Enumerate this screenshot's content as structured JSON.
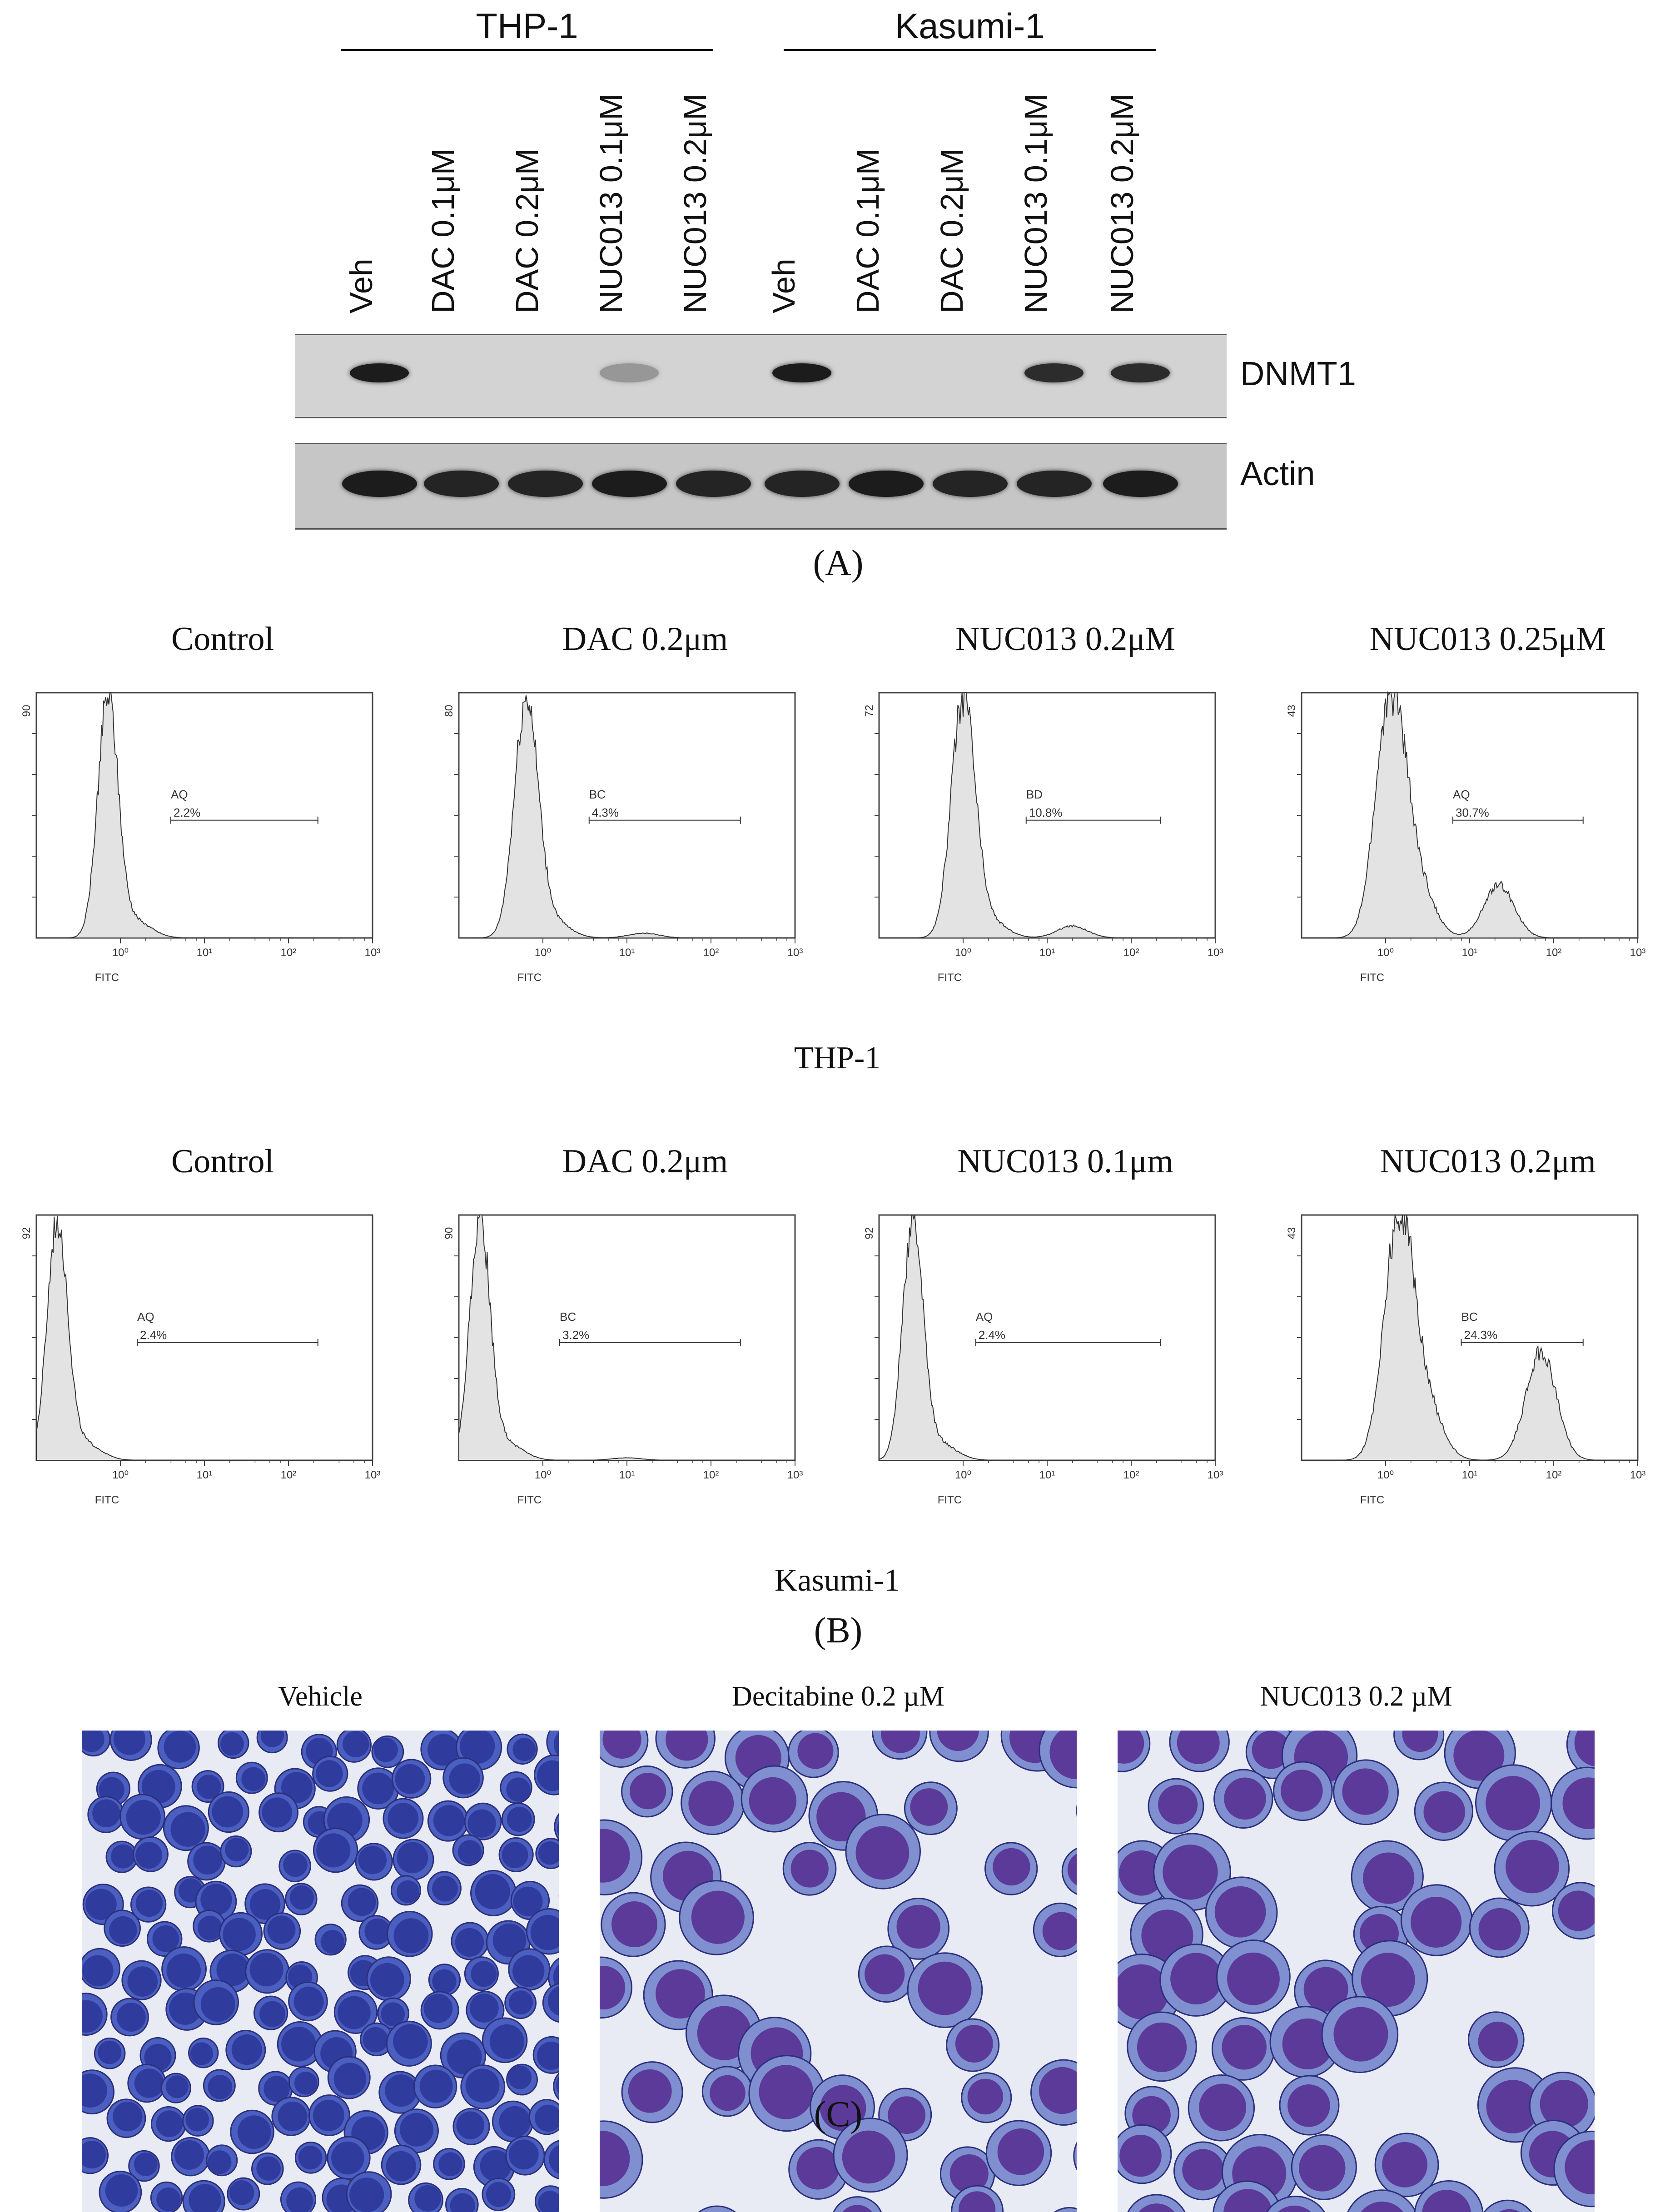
{
  "panel_a": {
    "group_labels": [
      "THP-1",
      "Kasumi-1"
    ],
    "lanes": [
      "Veh",
      "DAC 0.1μM",
      "DAC 0.2μM",
      "NUC013 0.1μM",
      "NUC013 0.2μM",
      "Veh",
      "DAC 0.1μM",
      "DAC 0.2μM",
      "NUC013 0.1μM",
      "NUC013 0.2μM"
    ],
    "blots": [
      {
        "name": "DNMT1",
        "intensities": [
          0.95,
          0,
          0,
          0.18,
          0,
          0.95,
          0,
          0,
          0.85,
          0.85
        ]
      },
      {
        "name": "Actin",
        "intensities": [
          0.95,
          0.9,
          0.9,
          0.95,
          0.9,
          0.9,
          0.95,
          0.9,
          0.9,
          0.95
        ]
      }
    ],
    "letter": "(A)"
  },
  "panel_b": {
    "letter": "(B)",
    "axis_label": "FITC",
    "tick_labels": [
      "10⁰",
      "10¹",
      "10²",
      "10³"
    ],
    "rows": [
      {
        "cell_line": "THP-1",
        "plots": [
          {
            "title": "Control",
            "ymax": "90",
            "gate": "AQ",
            "percent": "2.2%",
            "peak_log": -0.15,
            "peak_sd": 0.12,
            "tail": 0,
            "tail_center": 1.4
          },
          {
            "title": "DAC 0.2μm",
            "ymax": "80",
            "gate": "BC",
            "percent": "4.3%",
            "peak_log": -0.2,
            "peak_sd": 0.14,
            "tail": 0.02,
            "tail_center": 1.2
          },
          {
            "title": "NUC013 0.2μM",
            "ymax": "72",
            "gate": "BD",
            "percent": "10.8%",
            "peak_log": 0.0,
            "peak_sd": 0.14,
            "tail": 0.05,
            "tail_center": 1.3
          },
          {
            "title": "NUC013 0.25μM",
            "ymax": "43",
            "gate": "AQ",
            "percent": "30.7%",
            "peak_log": 0.05,
            "peak_sd": 0.17,
            "tail": 0.22,
            "tail_center": 1.35
          }
        ]
      },
      {
        "cell_line": "Kasumi-1",
        "plots": [
          {
            "title": "Control",
            "ymax": "92",
            "gate": "AQ",
            "percent": "2.4%",
            "peak_log": -0.75,
            "peak_sd": 0.12,
            "tail": 0,
            "tail_center": 1.3
          },
          {
            "title": "DAC 0.2μm",
            "ymax": "90",
            "gate": "BC",
            "percent": "3.2%",
            "peak_log": -0.75,
            "peak_sd": 0.12,
            "tail": 0.01,
            "tail_center": 1.0
          },
          {
            "title": "NUC013 0.1μm",
            "ymax": "92",
            "gate": "AQ",
            "percent": "2.4%",
            "peak_log": -0.6,
            "peak_sd": 0.12,
            "tail": 0,
            "tail_center": 1.3
          },
          {
            "title": "NUC013 0.2μm",
            "ymax": "43",
            "gate": "BC",
            "percent": "24.3%",
            "peak_log": 0.15,
            "peak_sd": 0.17,
            "tail": 0.45,
            "tail_center": 1.85
          }
        ]
      }
    ]
  },
  "panel_c": {
    "letter": "(C)",
    "images": [
      {
        "title": "Vehicle",
        "style": "small"
      },
      {
        "title": "Decitabine 0.2 µM",
        "style": "large"
      },
      {
        "title": "NUC013 0.2 µM",
        "style": "large"
      }
    ]
  }
}
